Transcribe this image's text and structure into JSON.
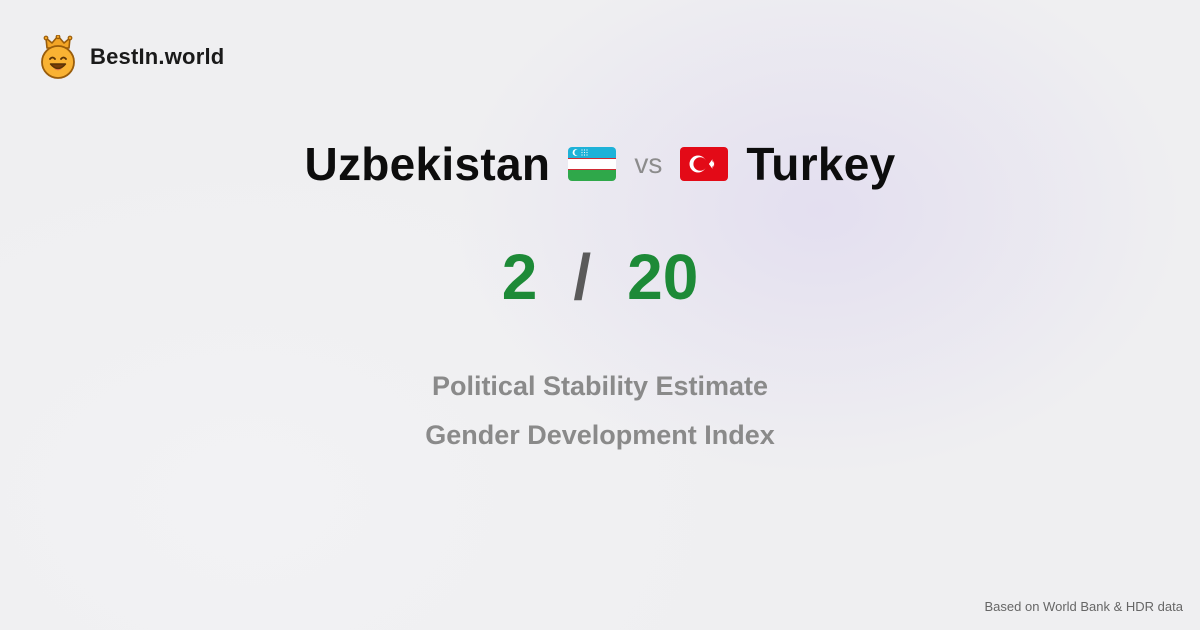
{
  "brand": {
    "name": "BestIn.world",
    "logo_icon": "crown-smiley-icon"
  },
  "comparison": {
    "left_country": "Uzbekistan",
    "left_flag_icon": "uzbekistan-flag-icon",
    "vs_label": "vs",
    "right_country": "Turkey",
    "right_flag_icon": "turkey-flag-icon"
  },
  "score": {
    "left": "2",
    "separator": "/",
    "right": "20"
  },
  "metrics": [
    "Political Stability Estimate",
    "Gender Development Index"
  ],
  "footer": {
    "source": "Based on World Bank & HDR data"
  },
  "colors": {
    "score_green": "#1d8a37",
    "title_black": "#0d0d0d",
    "muted_gray": "#8a8a8a",
    "logo_orange": "#f7a928"
  }
}
